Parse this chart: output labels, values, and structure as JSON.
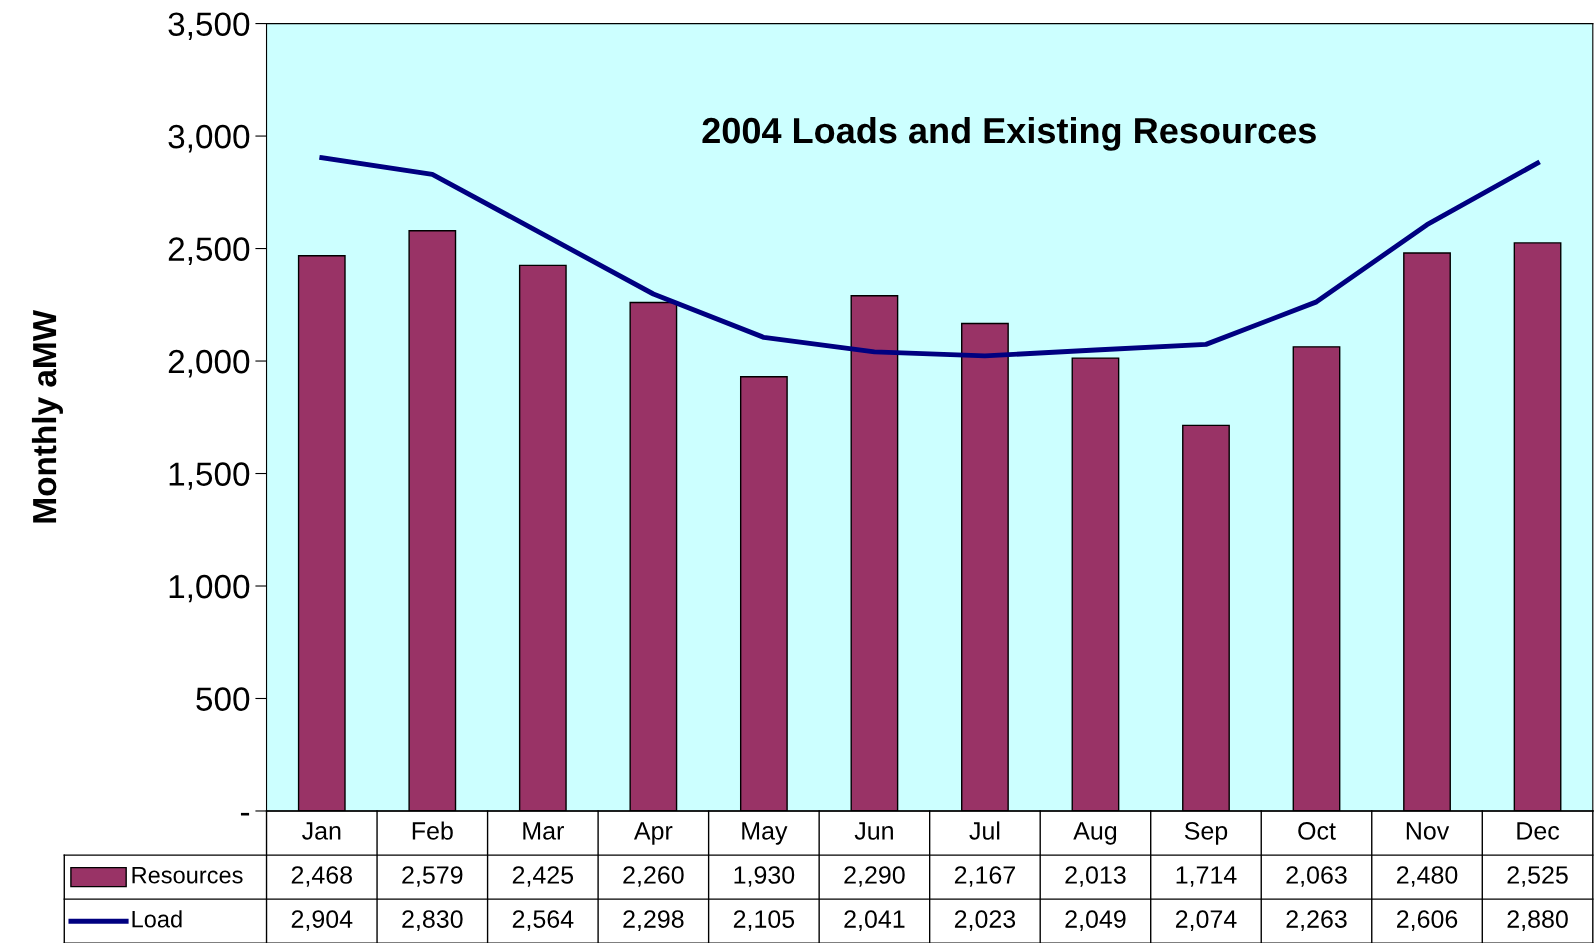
{
  "chart_data": {
    "type": "bar",
    "title": "2004 Loads and Existing Resources",
    "ylabel": "Monthly aMW",
    "categories": [
      "Jan",
      "Feb",
      "Mar",
      "Apr",
      "May",
      "Jun",
      "Jul",
      "Aug",
      "Sep",
      "Oct",
      "Nov",
      "Dec"
    ],
    "series": [
      {
        "name": "Resources",
        "color": "#993366",
        "values": [
          2468,
          2579,
          2425,
          2260,
          1930,
          2290,
          2167,
          2013,
          1714,
          2063,
          2480,
          2525
        ],
        "value_labels": [
          "2,468",
          "2,579",
          "2,425",
          "2,260",
          "1,930",
          "2,290",
          "2,167",
          "2,013",
          "1,714",
          "2,063",
          "2,480",
          "2,525"
        ]
      },
      {
        "name": "Load",
        "type": "line",
        "color": "#000080",
        "values": [
          2904,
          2830,
          2564,
          2298,
          2105,
          2041,
          2023,
          2049,
          2074,
          2263,
          2606,
          2880
        ],
        "value_labels": [
          "2,904",
          "2,830",
          "2,564",
          "2,298",
          "2,105",
          "2,041",
          "2,023",
          "2,049",
          "2,074",
          "2,263",
          "2,606",
          "2,880"
        ]
      }
    ],
    "ylim": [
      0,
      3500
    ],
    "yticks": [
      {
        "value": 0,
        "label": "-"
      },
      {
        "value": 500,
        "label": "500"
      },
      {
        "value": 1000,
        "label": "1,000"
      },
      {
        "value": 1500,
        "label": "1,500"
      },
      {
        "value": 2000,
        "label": "2,000"
      },
      {
        "value": 2500,
        "label": "2,500"
      },
      {
        "value": 3000,
        "label": "3,000"
      },
      {
        "value": 3500,
        "label": "3,500"
      }
    ],
    "legend": "bottom left",
    "grid": false
  }
}
